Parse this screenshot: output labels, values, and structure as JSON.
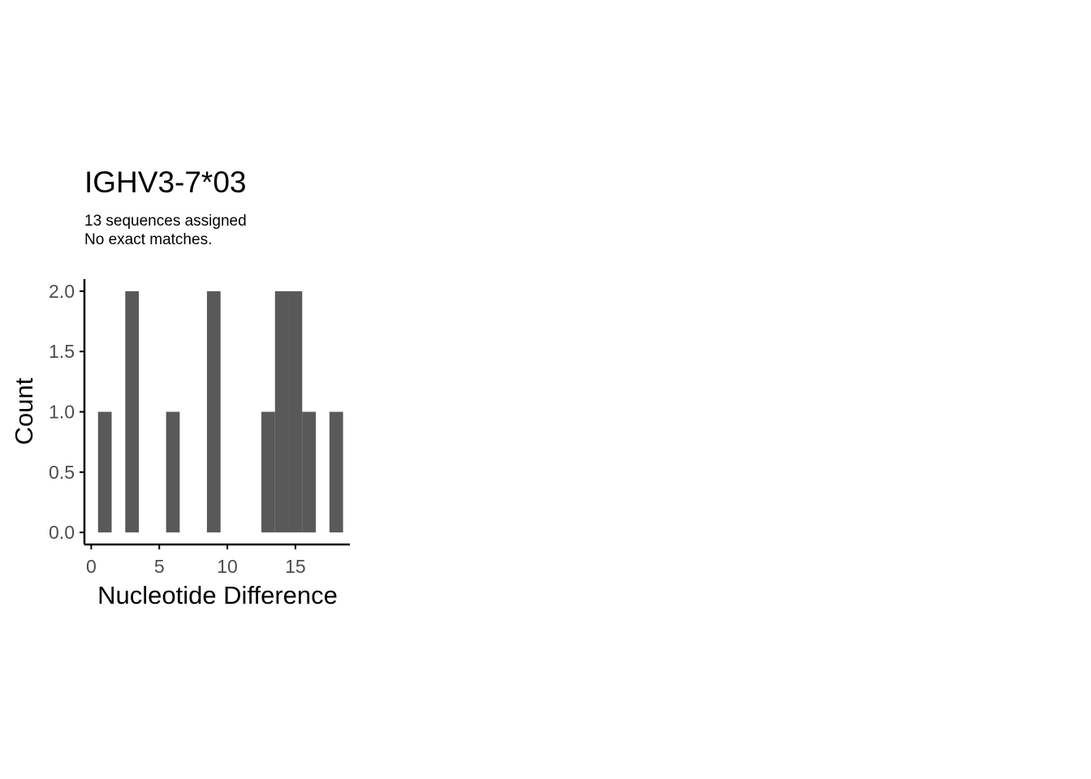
{
  "chart_data": {
    "type": "bar",
    "title": "IGHV3-7*03",
    "subtitle_lines": [
      "13 sequences assigned",
      "No exact matches."
    ],
    "xlabel": "Nucleotide Difference",
    "ylabel": "Count",
    "xlim": [
      -0.5,
      19
    ],
    "ylim": [
      -0.1,
      2.1
    ],
    "x_ticks": [
      0,
      5,
      10,
      15
    ],
    "x_tick_labels": [
      "0",
      "5",
      "10",
      "15"
    ],
    "y_ticks": [
      0,
      0.5,
      1,
      1.5,
      2
    ],
    "y_tick_labels": [
      "0.0",
      "0.5",
      "1.0",
      "1.5",
      "2.0"
    ],
    "bin_width": 1,
    "x": [
      1,
      3,
      6,
      9,
      13,
      14,
      15,
      16,
      18
    ],
    "values": [
      1,
      2,
      1,
      2,
      1,
      2,
      2,
      1,
      1
    ],
    "bar_color": "#595959",
    "axis_color": "#000000",
    "grid": false
  }
}
